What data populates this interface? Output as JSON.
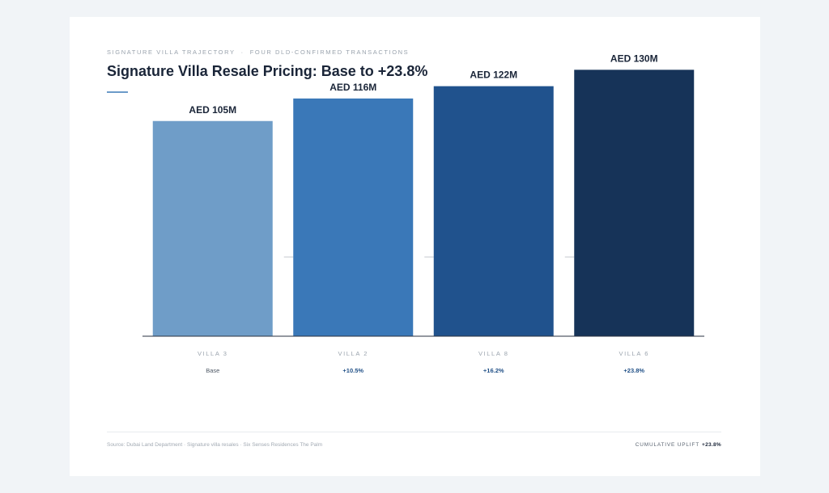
{
  "header": {
    "eyebrow_left": "SIGNATURE VILLA TRAJECTORY",
    "eyebrow_sep": "·",
    "eyebrow_right": "FOUR DLD-CONFIRMED TRANSACTIONS",
    "title": "Signature Villa Resale Pricing: Base to +23.8%"
  },
  "chart_data": {
    "type": "bar",
    "title": "Signature Villa Resale Pricing: Base to +23.8%",
    "categories": [
      "VILLA 3",
      "VILLA 2",
      "VILLA 8",
      "VILLA 6"
    ],
    "values": [
      105,
      116,
      122,
      130
    ],
    "value_labels": [
      "AED 105M",
      "AED 116M",
      "AED 122M",
      "AED 130M"
    ],
    "change_labels": [
      "Base",
      "+10.5%",
      "+16.2%",
      "+23.8%"
    ],
    "units": "AED M",
    "ylim": [
      0,
      140
    ],
    "colors": [
      "#6f9dc8",
      "#3a78b8",
      "#20528d",
      "#163358"
    ],
    "grid": false,
    "legend": "none"
  },
  "footer": {
    "source": "Source: Dubai Land Department · Signature villa resales · Six Senses Residences The Palm",
    "cumulative_label": "CUMULATIVE UPLIFT",
    "cumulative_value": "+23.8%"
  }
}
